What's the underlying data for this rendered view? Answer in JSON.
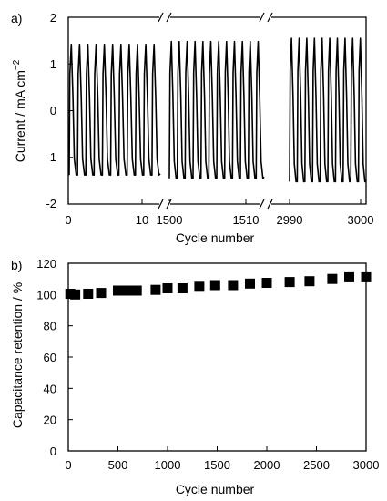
{
  "chart_data": [
    {
      "type": "line",
      "panel_label": "a)",
      "xlabel": "Cycle number",
      "ylabel_main": "Current / mA cm",
      "ylabel_sup": "−2",
      "ylim": [
        -2,
        2
      ],
      "y_ticks": [
        "2",
        "1",
        "0",
        "-1",
        "-2"
      ],
      "x_tick_labels": [
        "0",
        "10",
        "1500",
        "1510",
        "2990",
        "3000"
      ],
      "segments": [
        {
          "range": [
            0,
            11
          ],
          "cycles": 11,
          "amp_pos": 1.42,
          "amp_neg": -1.38
        },
        {
          "range": [
            1500,
            1512
          ],
          "cycles": 12,
          "amp_pos": 1.48,
          "amp_neg": -1.45
        },
        {
          "range": [
            2990,
            3000
          ],
          "cycles": 10,
          "amp_pos": 1.55,
          "amp_neg": -1.52
        }
      ],
      "axis_breaks": true,
      "grid": false
    },
    {
      "type": "scatter",
      "panel_label": "b)",
      "xlabel": "Cycle number",
      "ylabel": "Capacitance retention / %",
      "xlim": [
        0,
        3000
      ],
      "ylim": [
        0,
        120
      ],
      "x_ticks": [
        "0",
        "500",
        "1000",
        "1500",
        "2000",
        "2500",
        "3000"
      ],
      "y_ticks": [
        "0",
        "20",
        "40",
        "60",
        "80",
        "100",
        "120"
      ],
      "grid": false,
      "x": [
        20,
        70,
        200,
        330,
        500,
        580,
        640,
        690,
        880,
        1000,
        1150,
        1320,
        1480,
        1660,
        1830,
        2000,
        2230,
        2430,
        2660,
        2830,
        3000
      ],
      "y": [
        100.5,
        100,
        100.5,
        101,
        102.5,
        102.5,
        102.5,
        102.5,
        103,
        104,
        104,
        105,
        106,
        106,
        107,
        107.5,
        108,
        108.5,
        110,
        111,
        111
      ]
    }
  ]
}
